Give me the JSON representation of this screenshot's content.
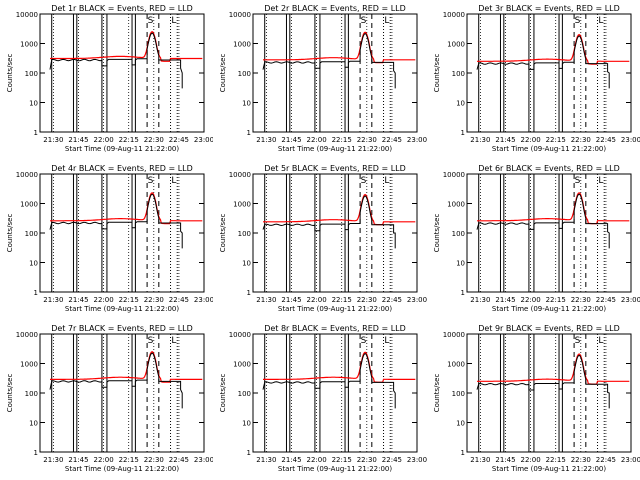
{
  "colors": {
    "black": "#000000",
    "red": "#ff0000",
    "background": "#ffffff"
  },
  "chart_data": [
    {
      "type": "line",
      "title": "Det 1r BLACK = Events, RED = LLD",
      "xlabel": "Start Time (09-Aug-11 21:22:00)",
      "ylabel": "Counts/sec",
      "yscale": "log",
      "ylim": [
        1,
        10000
      ],
      "xlim": [
        "21:22",
        "23:00"
      ],
      "x_ticks": [
        "21:30",
        "21:45",
        "22:00",
        "22:15",
        "22:30",
        "22:45",
        "23:00"
      ],
      "y_ticks": [
        "1",
        "10",
        "100",
        "1000",
        "10000"
      ],
      "markers": [
        "S",
        "L"
      ],
      "events_base": 290,
      "lld_base": 310,
      "peak": 2500
    },
    {
      "type": "line",
      "title": "Det 2r BLACK = Events, RED = LLD",
      "xlabel": "Start Time (09-Aug-11 21:22:00)",
      "ylabel": "Counts/sec",
      "yscale": "log",
      "ylim": [
        1,
        10000
      ],
      "xlim": [
        "21:22",
        "23:00"
      ],
      "x_ticks": [
        "21:30",
        "21:45",
        "22:00",
        "22:15",
        "22:30",
        "22:45",
        "23:00"
      ],
      "y_ticks": [
        "1",
        "10",
        "100",
        "1000",
        "10000"
      ],
      "markers": [
        "S",
        "L"
      ],
      "events_base": 240,
      "lld_base": 280,
      "peak": 2400
    },
    {
      "type": "line",
      "title": "Det 3r BLACK = Events, RED = LLD",
      "xlabel": "Start Time (09-Aug-11 21:22:00)",
      "ylabel": "Counts/sec",
      "yscale": "log",
      "ylim": [
        1,
        10000
      ],
      "xlim": [
        "21:22",
        "23:00"
      ],
      "x_ticks": [
        "21:30",
        "21:45",
        "22:00",
        "22:15",
        "22:30",
        "22:45",
        "23:00"
      ],
      "y_ticks": [
        "1",
        "10",
        "100",
        "1000",
        "10000"
      ],
      "markers": [
        "S",
        "L"
      ],
      "events_base": 220,
      "lld_base": 250,
      "peak": 2000
    },
    {
      "type": "line",
      "title": "Det 4r BLACK = Events, RED = LLD",
      "xlabel": "Start Time (09-Aug-11 21:22:00)",
      "ylabel": "Counts/sec",
      "yscale": "log",
      "ylim": [
        1,
        10000
      ],
      "xlim": [
        "21:22",
        "23:00"
      ],
      "x_ticks": [
        "21:30",
        "21:45",
        "22:00",
        "22:15",
        "22:30",
        "22:45",
        "23:00"
      ],
      "y_ticks": [
        "1",
        "10",
        "100",
        "1000",
        "10000"
      ],
      "markers": [
        "S",
        "L"
      ],
      "events_base": 230,
      "lld_base": 260,
      "peak": 2300
    },
    {
      "type": "line",
      "title": "Det 5r BLACK = Events, RED = LLD",
      "xlabel": "Start Time (09-Aug-11 21:22:00)",
      "ylabel": "Counts/sec",
      "yscale": "log",
      "ylim": [
        1,
        10000
      ],
      "xlim": [
        "21:22",
        "23:00"
      ],
      "x_ticks": [
        "21:30",
        "21:45",
        "22:00",
        "22:15",
        "22:30",
        "22:45",
        "23:00"
      ],
      "y_ticks": [
        "1",
        "10",
        "100",
        "1000",
        "10000"
      ],
      "markers": [
        "S",
        "L"
      ],
      "events_base": 200,
      "lld_base": 240,
      "peak": 2000
    },
    {
      "type": "line",
      "title": "Det 6r BLACK = Events, RED = LLD",
      "xlabel": "Start Time (09-Aug-11 21:22:00)",
      "ylabel": "Counts/sec",
      "yscale": "log",
      "ylim": [
        1,
        10000
      ],
      "xlim": [
        "21:22",
        "23:00"
      ],
      "x_ticks": [
        "21:30",
        "21:45",
        "22:00",
        "22:15",
        "22:30",
        "22:45",
        "23:00"
      ],
      "y_ticks": [
        "1",
        "10",
        "100",
        "1000",
        "10000"
      ],
      "markers": [
        "S",
        "L"
      ],
      "events_base": 220,
      "lld_base": 260,
      "peak": 2300
    },
    {
      "type": "line",
      "title": "Det 7r BLACK = Events, RED = LLD",
      "xlabel": "Start Time (09-Aug-11 21:22:00)",
      "ylabel": "Counts/sec",
      "yscale": "log",
      "ylim": [
        1,
        10000
      ],
      "xlim": [
        "21:22",
        "23:00"
      ],
      "x_ticks": [
        "21:30",
        "21:45",
        "22:00",
        "22:15",
        "22:30",
        "22:45",
        "23:00"
      ],
      "y_ticks": [
        "1",
        "10",
        "100",
        "1000",
        "10000"
      ],
      "markers": [
        "S",
        "L"
      ],
      "events_base": 260,
      "lld_base": 290,
      "peak": 2500
    },
    {
      "type": "line",
      "title": "Det 8r BLACK = Events, RED = LLD",
      "xlabel": "Start Time (09-Aug-11 21:22:00)",
      "ylabel": "Counts/sec",
      "yscale": "log",
      "ylim": [
        1,
        10000
      ],
      "xlim": [
        "21:22",
        "23:00"
      ],
      "x_ticks": [
        "21:30",
        "21:45",
        "22:00",
        "22:15",
        "22:30",
        "22:45",
        "23:00"
      ],
      "y_ticks": [
        "1",
        "10",
        "100",
        "1000",
        "10000"
      ],
      "markers": [
        "S",
        "L"
      ],
      "events_base": 240,
      "lld_base": 290,
      "peak": 2400
    },
    {
      "type": "line",
      "title": "Det 9r BLACK = Events, RED = LLD",
      "xlabel": "Start Time (09-Aug-11 21:22:00)",
      "ylabel": "Counts/sec",
      "yscale": "log",
      "ylim": [
        1,
        10000
      ],
      "xlim": [
        "21:22",
        "23:00"
      ],
      "x_ticks": [
        "21:30",
        "21:45",
        "22:00",
        "22:15",
        "22:30",
        "22:45",
        "23:00"
      ],
      "y_ticks": [
        "1",
        "10",
        "100",
        "1000",
        "10000"
      ],
      "markers": [
        "S",
        "L"
      ],
      "events_base": 210,
      "lld_base": 250,
      "peak": 2100
    }
  ]
}
